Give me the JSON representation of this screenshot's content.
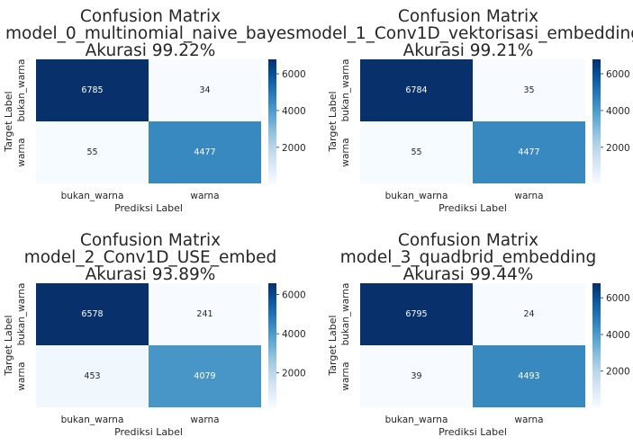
{
  "chart_data": [
    {
      "type": "heatmap",
      "title": [
        "Confusion Matrix",
        "model_0_multinomial_naive_bayes",
        "Akurasi 99.22%"
      ],
      "xlabel": "Prediksi Label",
      "ylabel": "Target Label",
      "x_categories": [
        "bukan_warna",
        "warna"
      ],
      "y_categories": [
        "bukan_warna",
        "warna"
      ],
      "values": [
        [
          6785,
          34
        ],
        [
          55,
          4477
        ]
      ],
      "colorbar": {
        "range": [
          34,
          6785
        ],
        "ticks": [
          2000,
          4000,
          6000
        ]
      },
      "colormap": "Blues"
    },
    {
      "type": "heatmap",
      "title": [
        "Confusion Matrix",
        "model_1_Conv1D_vektorisasi_embedding",
        "Akurasi 99.21%"
      ],
      "xlabel": "Prediksi Label",
      "ylabel": "Target Label",
      "x_categories": [
        "bukan_warna",
        "warna"
      ],
      "y_categories": [
        "bukan_warna",
        "warna"
      ],
      "values": [
        [
          6784,
          35
        ],
        [
          55,
          4477
        ]
      ],
      "colorbar": {
        "range": [
          35,
          6784
        ],
        "ticks": [
          2000,
          4000,
          6000
        ]
      },
      "colormap": "Blues"
    },
    {
      "type": "heatmap",
      "title": [
        "Confusion Matrix",
        "model_2_Conv1D_USE_embed",
        "Akurasi 93.89%"
      ],
      "xlabel": "Prediksi Label",
      "ylabel": "Target Label",
      "x_categories": [
        "bukan_warna",
        "warna"
      ],
      "y_categories": [
        "bukan_warna",
        "warna"
      ],
      "values": [
        [
          6578,
          241
        ],
        [
          453,
          4079
        ]
      ],
      "colorbar": {
        "range": [
          241,
          6578
        ],
        "ticks": [
          2000,
          4000,
          6000
        ]
      },
      "colormap": "Blues"
    },
    {
      "type": "heatmap",
      "title": [
        "Confusion Matrix",
        "model_3_quadbrid_embedding",
        "Akurasi 99.44%"
      ],
      "xlabel": "Prediksi Label",
      "ylabel": "Target Label",
      "x_categories": [
        "bukan_warna",
        "warna"
      ],
      "y_categories": [
        "bukan_warna",
        "warna"
      ],
      "values": [
        [
          6795,
          24
        ],
        [
          39,
          4493
        ]
      ],
      "colorbar": {
        "range": [
          24,
          6795
        ],
        "ticks": [
          2000,
          4000,
          6000
        ]
      },
      "colormap": "Blues"
    }
  ]
}
